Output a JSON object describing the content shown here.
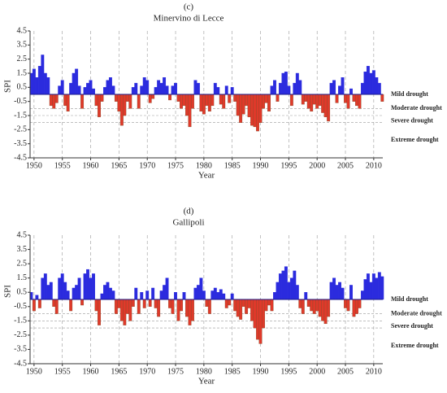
{
  "chart_data": [
    {
      "type": "area",
      "title": "(c)",
      "subtitle": "Minervino di Lecce",
      "x_label": "Year",
      "y_label": "SPI",
      "pos_color": "#2b2bde",
      "neg_color": "#e0392a",
      "xlim": [
        1949.3,
        2011.6
      ],
      "ylim": [
        -4.5,
        4.5
      ],
      "xticks": [
        1950,
        1955,
        1960,
        1965,
        1970,
        1975,
        1980,
        1985,
        1990,
        1995,
        2000,
        2005,
        2010
      ],
      "yticks": [
        4.5,
        3.5,
        2.5,
        1.5,
        0.5,
        -0.5,
        -1.5,
        -2.5,
        -3.5,
        -4.5
      ],
      "thresholds": [
        -1,
        -1.5,
        -2
      ],
      "threshold_labels": [
        "Mild drought",
        "Moderate drought",
        "Severe drought",
        "Extreme drought"
      ],
      "x": [
        1949.5,
        1950,
        1950.5,
        1951,
        1951.5,
        1952,
        1952.5,
        1953,
        1953.5,
        1954,
        1954.5,
        1955,
        1955.5,
        1956,
        1956.5,
        1957,
        1957.5,
        1958,
        1958.5,
        1959,
        1959.5,
        1960,
        1960.5,
        1961,
        1961.5,
        1962,
        1962.5,
        1963,
        1963.5,
        1964,
        1964.5,
        1965,
        1965.5,
        1966,
        1966.5,
        1967,
        1967.5,
        1968,
        1968.5,
        1969,
        1969.5,
        1970,
        1970.5,
        1971,
        1971.5,
        1972,
        1972.5,
        1973,
        1973.5,
        1974,
        1974.5,
        1975,
        1975.5,
        1976,
        1976.5,
        1977,
        1977.5,
        1978,
        1978.5,
        1979,
        1979.5,
        1980,
        1980.5,
        1981,
        1981.5,
        1982,
        1982.5,
        1983,
        1983.5,
        1984,
        1984.5,
        1985,
        1985.5,
        1986,
        1986.5,
        1987,
        1987.5,
        1988,
        1988.5,
        1989,
        1989.5,
        1990,
        1990.5,
        1991,
        1991.5,
        1992,
        1992.5,
        1993,
        1993.5,
        1994,
        1994.5,
        1995,
        1995.5,
        1996,
        1996.5,
        1997,
        1997.5,
        1998,
        1998.5,
        1999,
        1999.5,
        2000,
        2000.5,
        2001,
        2001.5,
        2002,
        2002.5,
        2003,
        2003.5,
        2004,
        2004.5,
        2005,
        2005.5,
        2006,
        2006.5,
        2007,
        2007.5,
        2008,
        2008.5,
        2009,
        2009.5,
        2010,
        2010.5,
        2011,
        2011.5
      ],
      "values": [
        1.5,
        1.8,
        1.2,
        2.0,
        2.8,
        1.5,
        1.2,
        -0.8,
        -1.0,
        -0.6,
        0.6,
        1.0,
        -0.8,
        -1.2,
        0.8,
        1.5,
        1.8,
        0.6,
        -1.0,
        0.5,
        0.8,
        1.0,
        0.4,
        -0.8,
        -1.6,
        -0.5,
        0.5,
        1.0,
        1.2,
        0.6,
        -0.5,
        -1.2,
        -2.2,
        -1.5,
        -0.5,
        -1.0,
        0.5,
        0.8,
        -1.0,
        0.6,
        1.2,
        1.0,
        -0.6,
        -0.3,
        0.5,
        1.0,
        0.8,
        1.2,
        0.6,
        -0.4,
        0.6,
        0.8,
        -0.5,
        -1.0,
        -0.8,
        -1.5,
        -2.3,
        -1.0,
        1.0,
        0.8,
        -1.2,
        -1.4,
        -0.8,
        -1.2,
        -0.8,
        0.8,
        0.5,
        -0.7,
        -1.0,
        0.6,
        -0.6,
        0.5,
        -0.5,
        -1.5,
        -2.0,
        -1.4,
        -0.8,
        -1.6,
        -2.2,
        -2.3,
        -2.6,
        -2.0,
        -1.0,
        -0.6,
        -1.2,
        0.6,
        1.0,
        -0.5,
        0.8,
        1.5,
        1.6,
        0.6,
        -0.8,
        0.8,
        1.5,
        1.0,
        -0.7,
        -0.5,
        -1.0,
        -1.2,
        -0.7,
        -1.0,
        -0.8,
        -1.3,
        -1.6,
        -1.9,
        0.8,
        1.0,
        -0.6,
        0.6,
        1.2,
        -0.6,
        -1.0,
        0.4,
        -0.5,
        -0.8,
        -1.0,
        0.8,
        1.6,
        2.0,
        1.5,
        1.7,
        1.2,
        0.8,
        -0.5
      ]
    },
    {
      "type": "area",
      "title": "(d)",
      "subtitle": "Gallipoli",
      "x_label": "Year",
      "y_label": "SPI",
      "pos_color": "#2b2bde",
      "neg_color": "#e0392a",
      "xlim": [
        1949.3,
        2011.6
      ],
      "ylim": [
        -4.5,
        4.5
      ],
      "xticks": [
        1950,
        1955,
        1960,
        1965,
        1970,
        1975,
        1980,
        1985,
        1990,
        1995,
        2000,
        2005,
        2010
      ],
      "yticks": [
        4.5,
        3.5,
        2.5,
        1.5,
        0.5,
        -0.5,
        -1.5,
        -2.5,
        -3.5,
        -4.5
      ],
      "thresholds": [
        -1,
        -1.5,
        -2
      ],
      "threshold_labels": [
        "Mild drought",
        "Moderate drought",
        "Severe drought",
        "Extreme drought"
      ],
      "x": [
        1949.5,
        1950,
        1950.5,
        1951,
        1951.5,
        1952,
        1952.5,
        1953,
        1953.5,
        1954,
        1954.5,
        1955,
        1955.5,
        1956,
        1956.5,
        1957,
        1957.5,
        1958,
        1958.5,
        1959,
        1959.5,
        1960,
        1960.5,
        1961,
        1961.5,
        1962,
        1962.5,
        1963,
        1963.5,
        1964,
        1964.5,
        1965,
        1965.5,
        1966,
        1966.5,
        1967,
        1967.5,
        1968,
        1968.5,
        1969,
        1969.5,
        1970,
        1970.5,
        1971,
        1971.5,
        1972,
        1972.5,
        1973,
        1973.5,
        1974,
        1974.5,
        1975,
        1975.5,
        1976,
        1976.5,
        1977,
        1977.5,
        1978,
        1978.5,
        1979,
        1979.5,
        1980,
        1980.5,
        1981,
        1981.5,
        1982,
        1982.5,
        1983,
        1983.5,
        1984,
        1984.5,
        1985,
        1985.5,
        1986,
        1986.5,
        1987,
        1987.5,
        1988,
        1988.5,
        1989,
        1989.5,
        1990,
        1990.5,
        1991,
        1991.5,
        1992,
        1992.5,
        1993,
        1993.5,
        1994,
        1994.5,
        1995,
        1995.5,
        1996,
        1996.5,
        1997,
        1997.5,
        1998,
        1998.5,
        1999,
        1999.5,
        2000,
        2000.5,
        2001,
        2001.5,
        2002,
        2002.5,
        2003,
        2003.5,
        2004,
        2004.5,
        2005,
        2005.5,
        2006,
        2006.5,
        2007,
        2007.5,
        2008,
        2008.5,
        2009,
        2009.5,
        2010,
        2010.5,
        2011,
        2011.5
      ],
      "values": [
        0.5,
        -0.8,
        0.3,
        -0.6,
        1.5,
        1.8,
        1.0,
        1.2,
        -0.5,
        -1.0,
        1.5,
        1.8,
        1.2,
        0.6,
        -0.8,
        0.8,
        1.0,
        1.5,
        -0.4,
        1.8,
        2.1,
        1.5,
        1.8,
        -0.8,
        -1.8,
        0.4,
        1.0,
        1.2,
        0.8,
        0.6,
        -1.0,
        -0.6,
        -1.5,
        -1.8,
        -1.0,
        -1.5,
        -0.5,
        0.8,
        -1.0,
        0.5,
        -0.6,
        0.6,
        -0.5,
        0.8,
        -0.6,
        -1.2,
        0.6,
        1.0,
        1.5,
        -0.6,
        -1.0,
        0.5,
        -1.5,
        -0.8,
        0.5,
        -1.2,
        -1.8,
        -1.5,
        0.8,
        1.0,
        1.5,
        0.6,
        -0.5,
        -1.0,
        0.6,
        0.8,
        0.5,
        0.7,
        0.4,
        -0.6,
        -0.4,
        0.4,
        -0.8,
        -1.2,
        -1.4,
        -0.5,
        -1.0,
        -0.6,
        -1.5,
        -2.0,
        -2.8,
        -3.1,
        -2.0,
        -0.8,
        -0.4,
        -0.8,
        0.5,
        1.2,
        1.8,
        2.0,
        2.3,
        1.2,
        1.5,
        2.0,
        1.0,
        -0.6,
        -1.0,
        0.5,
        -0.5,
        -0.8,
        -1.0,
        -0.8,
        -1.2,
        -1.5,
        -1.7,
        -1.2,
        1.2,
        1.5,
        1.0,
        1.2,
        0.8,
        -0.6,
        -0.8,
        1.0,
        -1.2,
        -1.0,
        -0.6,
        0.6,
        1.4,
        1.8,
        1.2,
        1.8,
        1.5,
        1.9,
        1.6
      ]
    }
  ]
}
